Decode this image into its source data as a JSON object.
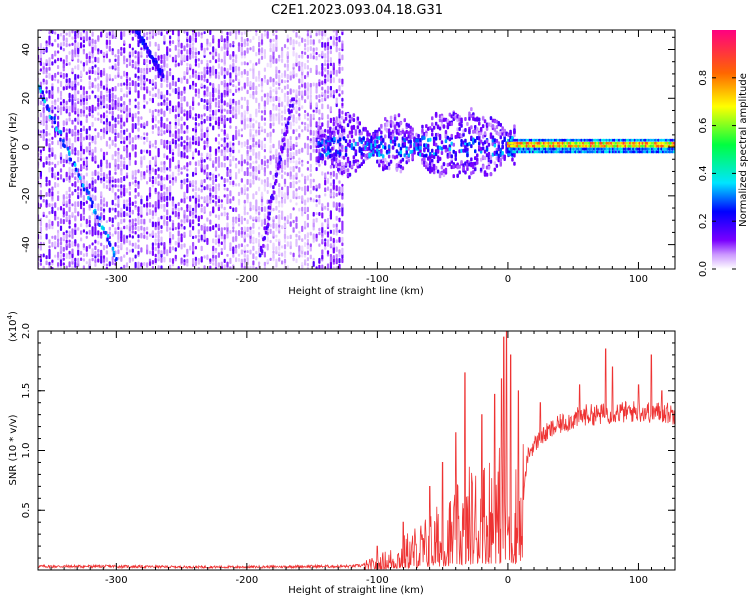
{
  "title": "C2E1.2023.093.04.18.G31",
  "chart_data": [
    {
      "type": "heatmap",
      "xlabel": "Height of straight line (km)",
      "ylabel": "Frequency (Hz)",
      "xlim": [
        -360,
        128
      ],
      "ylim": [
        -50,
        48
      ],
      "xticks": [
        -300,
        -200,
        -100,
        0,
        100
      ],
      "yticks": [
        -40,
        -20,
        0,
        20,
        40
      ],
      "colorbar": {
        "label": "Normalized spectral amplitude",
        "range": [
          0,
          1
        ],
        "ticks": [
          0.0,
          0.2,
          0.4,
          0.6,
          0.8
        ],
        "colors": [
          "#ffffff",
          "#cc99ff",
          "#7a00ff",
          "#0000ff",
          "#00e5ff",
          "#00ff40",
          "#ffff00",
          "#ff6600",
          "#ff0080"
        ]
      },
      "regions": [
        {
          "x": [
            -360,
            -125
          ],
          "y": [
            -50,
            48
          ],
          "amplitude": 0.15,
          "pattern": "broadband noise"
        },
        {
          "x": [
            -145,
            5
          ],
          "y": [
            -12,
            15
          ],
          "amplitude": 0.3,
          "pattern": "scattered clusters"
        },
        {
          "x": [
            0,
            128
          ],
          "y": [
            -2,
            3
          ],
          "amplitude": 0.85,
          "pattern": "narrow band near 0 Hz"
        }
      ],
      "streaks": [
        {
          "x": [
            -360,
            -300
          ],
          "y": [
            25,
            -45
          ],
          "amplitude": 0.3
        },
        {
          "x": [
            -285,
            -265
          ],
          "y": [
            48,
            30
          ],
          "amplitude": 0.2
        },
        {
          "x": [
            -190,
            -165
          ],
          "y": [
            -45,
            20
          ],
          "amplitude": 0.15
        }
      ]
    },
    {
      "type": "line",
      "xlabel": "Height of straight line (km)",
      "ylabel": "SNR (10 * v/v)",
      "yscale_label": "(x10",
      "yscale_exponent": "4",
      "yscale_close": ")",
      "xlim": [
        -360,
        128
      ],
      "ylim": [
        0,
        2.0
      ],
      "xticks": [
        -300,
        -200,
        -100,
        0,
        100
      ],
      "yticks": [
        0.5,
        1.0,
        1.5,
        2.0
      ],
      "ytick_labels": [
        "0.5",
        "1.0",
        "1.5",
        "2.0"
      ],
      "series": [
        {
          "color": "#ee3333",
          "x": [
            -360,
            -300,
            -250,
            -200,
            -150,
            -120,
            -110,
            -100,
            -90,
            -80,
            -70,
            -60,
            -50,
            -40,
            -30,
            -20,
            -10,
            0,
            5,
            10,
            15,
            20,
            30,
            40,
            50,
            60,
            70,
            80,
            90,
            100,
            110,
            120,
            128
          ],
          "values": [
            0.03,
            0.03,
            0.025,
            0.025,
            0.03,
            0.03,
            0.04,
            0.06,
            0.1,
            0.15,
            0.2,
            0.25,
            0.3,
            0.35,
            0.45,
            0.5,
            0.55,
            0.5,
            0.5,
            0.4,
            0.95,
            1.05,
            1.15,
            1.22,
            1.26,
            1.3,
            1.3,
            1.32,
            1.32,
            1.33,
            1.32,
            1.32,
            1.3
          ],
          "peaks": [
            [
              -100,
              0.2
            ],
            [
              -80,
              0.4
            ],
            [
              -60,
              0.7
            ],
            [
              -50,
              0.9
            ],
            [
              -40,
              1.15
            ],
            [
              -33,
              1.65
            ],
            [
              -20,
              1.3
            ],
            [
              -10,
              1.47
            ],
            [
              -5,
              1.6
            ],
            [
              -3,
              1.95
            ],
            [
              -1,
              2.0
            ],
            [
              2,
              1.8
            ],
            [
              8,
              1.5
            ],
            [
              25,
              1.4
            ],
            [
              55,
              1.55
            ],
            [
              75,
              1.85
            ],
            [
              80,
              1.7
            ],
            [
              100,
              1.55
            ],
            [
              110,
              1.8
            ],
            [
              118,
              1.5
            ]
          ]
        }
      ]
    }
  ]
}
